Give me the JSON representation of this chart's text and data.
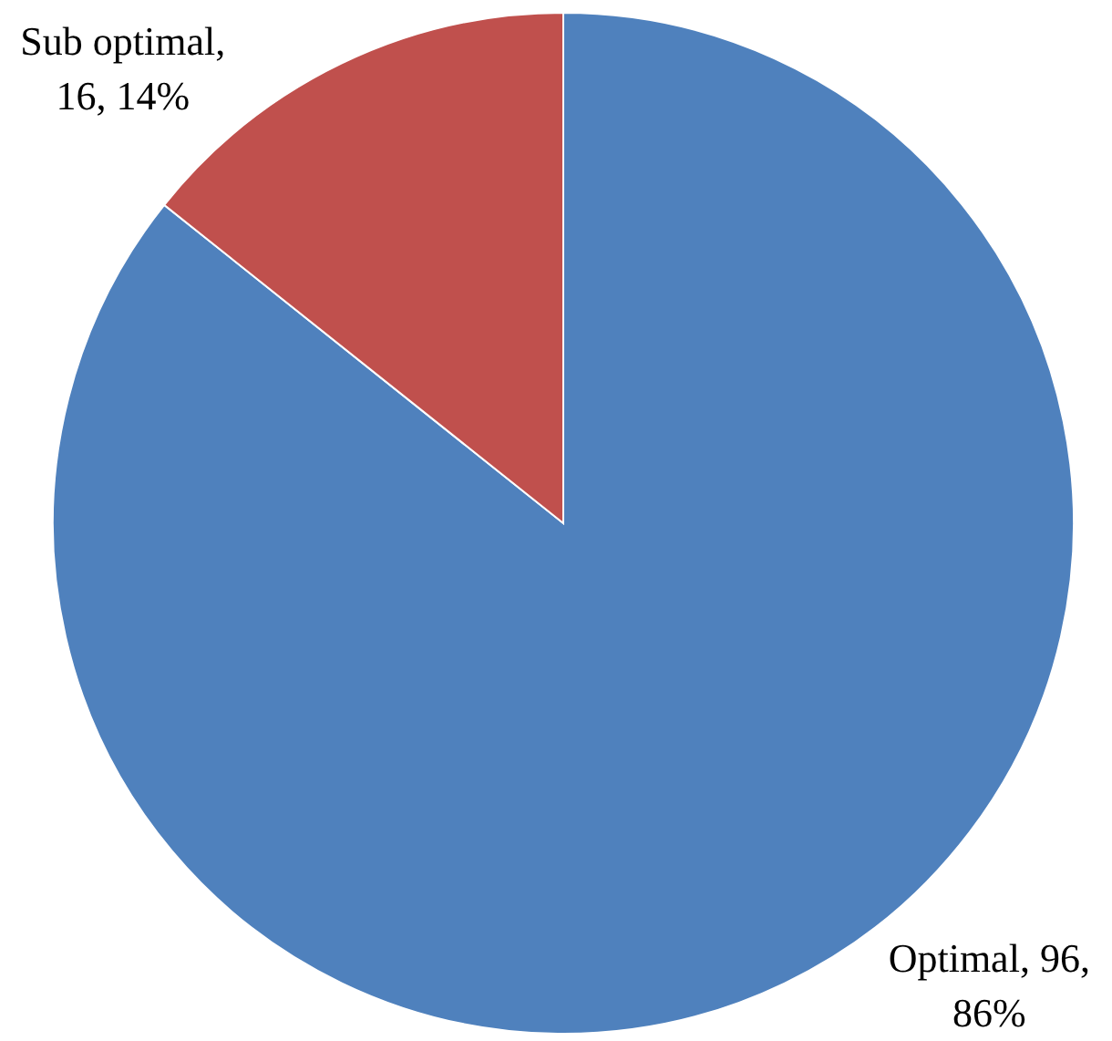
{
  "chart_data": {
    "type": "pie",
    "categories": [
      "Optimal",
      "Sub optimal"
    ],
    "values": [
      96,
      16
    ],
    "colors": [
      "#4f81bd",
      "#c0504d"
    ],
    "value_labels": [
      ", 96,\n86%",
      ",\n16, 14%"
    ]
  }
}
